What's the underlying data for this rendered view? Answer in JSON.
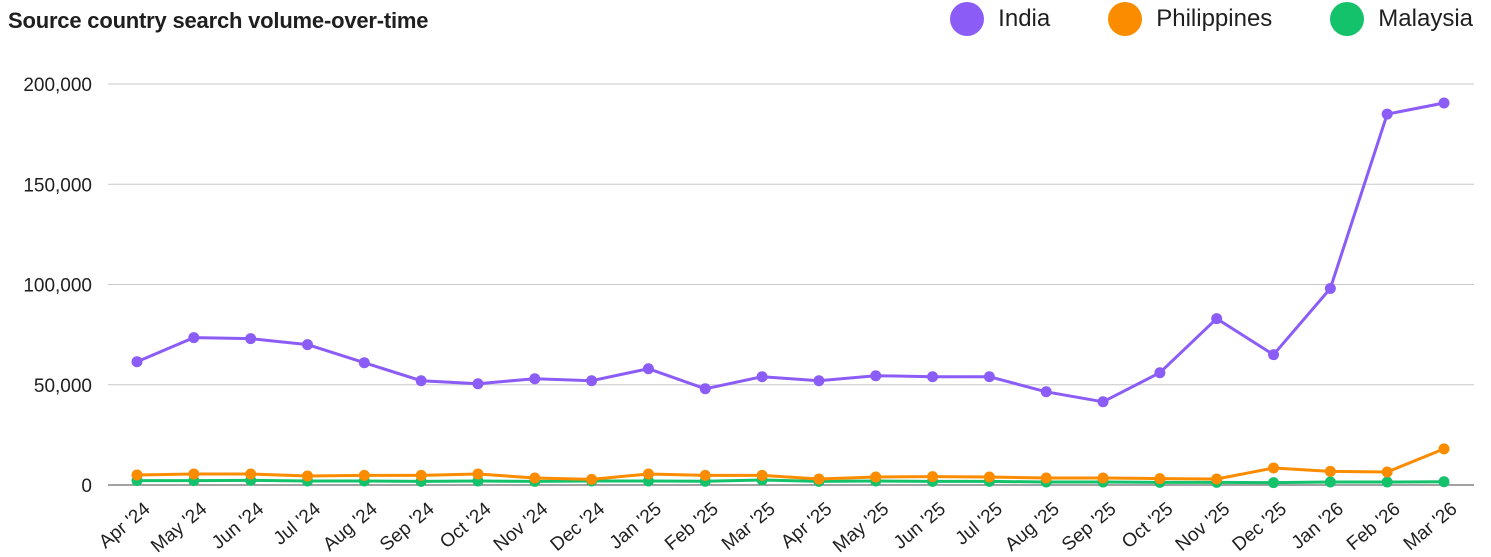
{
  "chart_data": {
    "type": "line",
    "title": "Source country search volume-over-time",
    "xlabel": "",
    "ylabel": "",
    "ylim": [
      0,
      200000
    ],
    "yticks": [
      0,
      50000,
      100000,
      150000,
      200000
    ],
    "ytick_labels": [
      "0",
      "50,000",
      "100,000",
      "150,000",
      "200,000"
    ],
    "grid": true,
    "legend_position": "top-right",
    "categories": [
      "Apr '24",
      "May '24",
      "Jun '24",
      "Jul '24",
      "Aug '24",
      "Sep '24",
      "Oct '24",
      "Nov '24",
      "Dec '24",
      "Jan '25",
      "Feb '25",
      "Mar '25",
      "Apr '25",
      "May '25",
      "Jun '25",
      "Jul '25",
      "Aug '25",
      "Sep '25",
      "Oct '25",
      "Nov '25",
      "Dec '25",
      "Jan '26",
      "Feb '26",
      "Mar '26"
    ],
    "series": [
      {
        "name": "India",
        "color": "#8b5cf6",
        "values": [
          61500,
          73500,
          73000,
          70000,
          61000,
          52000,
          50500,
          53000,
          52000,
          58000,
          48000,
          54000,
          52000,
          54500,
          54000,
          54000,
          46500,
          41500,
          56000,
          83000,
          65000,
          98000,
          185000,
          190500
        ]
      },
      {
        "name": "Philippines",
        "color": "#fb8c00",
        "values": [
          5000,
          5500,
          5500,
          4500,
          4800,
          4800,
          5500,
          3500,
          2800,
          5500,
          4800,
          4800,
          3000,
          4000,
          4200,
          4000,
          3500,
          3500,
          3200,
          3000,
          8500,
          6800,
          6500,
          18000
        ]
      },
      {
        "name": "Malaysia",
        "color": "#14c26b",
        "values": [
          2200,
          2200,
          2300,
          2000,
          2000,
          1800,
          2000,
          1800,
          2000,
          2000,
          1900,
          2500,
          1800,
          2000,
          1800,
          1800,
          1500,
          1500,
          1300,
          1300,
          1200,
          1500,
          1500,
          1600
        ]
      }
    ]
  }
}
